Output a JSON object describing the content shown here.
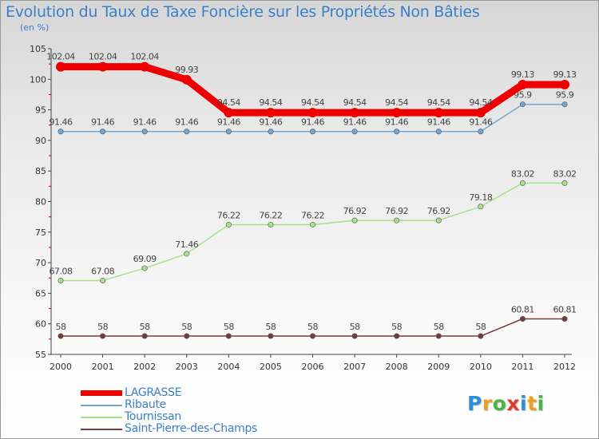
{
  "chart_data": {
    "type": "line",
    "title": "Evolution du Taux de Taxe Foncière sur les Propriétés Non Bâties",
    "subtitle": "(en %)",
    "xlabel": "",
    "ylabel": "",
    "categories": [
      "2000",
      "2001",
      "2002",
      "2003",
      "2004",
      "2005",
      "2006",
      "2007",
      "2008",
      "2009",
      "2010",
      "2011",
      "2012"
    ],
    "ylim": [
      55,
      105
    ],
    "yticks": [
      "55",
      "60",
      "65",
      "70",
      "75",
      "80",
      "85",
      "90",
      "95",
      "100",
      "105"
    ],
    "grid": false,
    "legend_position": "bottom-left",
    "series": [
      {
        "name": "LAGRASSE",
        "color": "#ee0000",
        "values": [
          102.04,
          102.04,
          102.04,
          99.93,
          94.54,
          94.54,
          94.54,
          94.54,
          94.54,
          94.54,
          94.54,
          99.13,
          99.13
        ],
        "labels": [
          "102.04",
          "102.04",
          "102.04",
          "99.93",
          "94.54",
          "94.54",
          "94.54",
          "94.54",
          "94.54",
          "94.54",
          "94.54",
          "99.13",
          "99.13"
        ]
      },
      {
        "name": "Ribaute",
        "color": "#6fa8d6",
        "values": [
          91.46,
          91.46,
          91.46,
          91.46,
          91.46,
          91.46,
          91.46,
          91.46,
          91.46,
          91.46,
          91.46,
          95.9,
          95.9
        ],
        "labels": [
          "91.46",
          "91.46",
          "91.46",
          "91.46",
          "91.46",
          "91.46",
          "91.46",
          "91.46",
          "91.46",
          "91.46",
          "91.46",
          "95.9",
          "95.9"
        ]
      },
      {
        "name": "Tournissan",
        "color": "#a8e08a",
        "values": [
          67.08,
          67.08,
          69.09,
          71.46,
          76.22,
          76.22,
          76.22,
          76.92,
          76.92,
          76.92,
          79.18,
          83.02,
          83.02
        ],
        "labels": [
          "67.08",
          "67.08",
          "69.09",
          "71.46",
          "76.22",
          "76.22",
          "76.22",
          "76.92",
          "76.92",
          "76.92",
          "79.18",
          "83.02",
          "83.02"
        ]
      },
      {
        "name": "Saint-Pierre-des-Champs",
        "color": "#7a3a3a",
        "values": [
          58,
          58,
          58,
          58,
          58,
          58,
          58,
          58,
          58,
          58,
          58,
          60.81,
          60.81
        ],
        "labels": [
          "58",
          "58",
          "58",
          "58",
          "58",
          "58",
          "58",
          "58",
          "58",
          "58",
          "58",
          "60.81",
          "60.81"
        ]
      }
    ]
  },
  "logo": {
    "text": "Proxiti",
    "letters": [
      "P",
      "r",
      "o",
      "x",
      "i",
      "t",
      "i"
    ]
  }
}
